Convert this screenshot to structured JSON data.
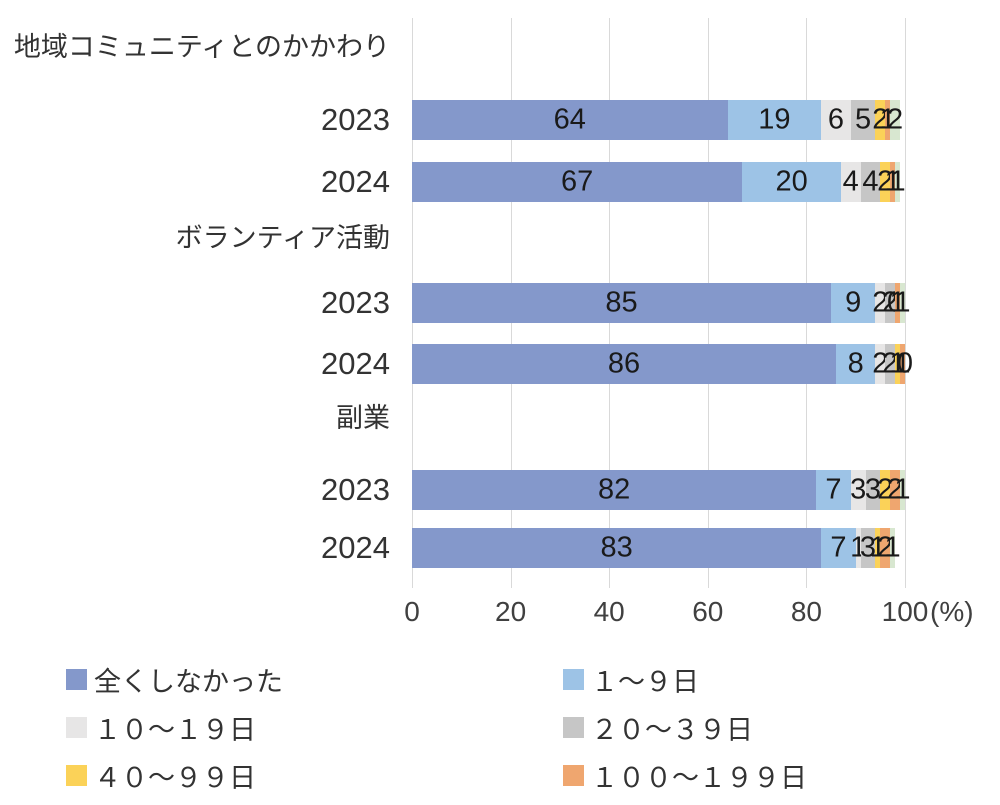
{
  "chart_data": {
    "type": "bar",
    "orientation": "horizontal",
    "stacked": true,
    "title": "",
    "x_axis": {
      "tick_labels": [
        "0",
        "20",
        "40",
        "60",
        "80",
        "100"
      ],
      "range": [
        0,
        100
      ],
      "unit_label": "(%)"
    },
    "grid": true,
    "legend_position": "bottom",
    "series": [
      {
        "name": "全くしなかった",
        "color": "#8498cb",
        "in_legend": true
      },
      {
        "name": "１〜９日",
        "color": "#9dc3e6",
        "in_legend": true
      },
      {
        "name": "１０〜１９日",
        "color": "#e7e6e6",
        "in_legend": true
      },
      {
        "name": "２０〜３９日",
        "color": "#c6c6c6",
        "in_legend": true
      },
      {
        "name": "４０〜９９日",
        "color": "#fbd258",
        "in_legend": true
      },
      {
        "name": "１００〜１９９日",
        "color": "#efa66f",
        "in_legend": true
      },
      {
        "name": "",
        "color": "#d8e7d0",
        "in_legend": false
      }
    ],
    "groups": [
      {
        "label": "地域コミュニティとのかかわり",
        "rows": [
          {
            "label": "2023",
            "values": [
              64,
              19,
              6,
              5,
              2,
              1,
              2
            ]
          },
          {
            "label": "2024",
            "values": [
              67,
              20,
              4,
              4,
              2,
              1,
              1
            ]
          }
        ]
      },
      {
        "label": "ボランティア活動",
        "rows": [
          {
            "label": "2023",
            "values": [
              85,
              9,
              2,
              2,
              0,
              1,
              1
            ]
          },
          {
            "label": "2024",
            "values": [
              86,
              8,
              2,
              2,
              1,
              1,
              0
            ]
          }
        ]
      },
      {
        "label": "副業",
        "rows": [
          {
            "label": "2023",
            "values": [
              82,
              7,
              3,
              3,
              2,
              2,
              1
            ]
          },
          {
            "label": "2024",
            "values": [
              83,
              7,
              1,
              3,
              1,
              2,
              1
            ]
          }
        ]
      }
    ]
  },
  "colors": {
    "gridline": "#d9d9d9",
    "axis_text": "#404040",
    "bar_label_text": "#1a1a1a",
    "background": "#ffffff"
  }
}
